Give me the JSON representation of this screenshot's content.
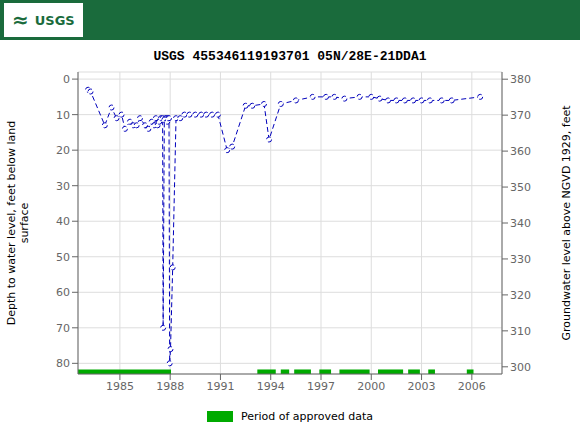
{
  "chart_data": {
    "type": "line",
    "title": "USGS 455346119193701 05N/28E-21DDA1",
    "annotations": [
      "≈",
      "USGS"
    ],
    "y_label": "Depth to water level, feet below land\n surface",
    "y2_label": "Groundwater level above NGVD 1929, feet",
    "xlim": [
      1982.5,
      2007.8
    ],
    "xticks": [
      1985,
      1988,
      1991,
      1994,
      1997,
      2000,
      2003,
      2006
    ],
    "ylim": [
      83,
      -2
    ],
    "yticks": [
      0,
      10,
      20,
      30,
      40,
      50,
      60,
      70,
      80
    ],
    "y2lim": [
      298,
      382
    ],
    "y2ticks": [
      300,
      310,
      320,
      330,
      340,
      350,
      360,
      370,
      380
    ],
    "grid": true,
    "legend": "bottom",
    "x": [
      1983.1,
      1983.25,
      1984.1,
      1984.5,
      1984.8,
      1985.1,
      1985.3,
      1985.6,
      1985.8,
      1986.0,
      1986.2,
      1986.5,
      1986.7,
      1986.9,
      1987.05,
      1987.15,
      1987.25,
      1987.35,
      1987.45,
      1987.55,
      1987.58,
      1987.65,
      1987.72,
      1987.78,
      1987.83,
      1987.88,
      1987.93,
      1987.97,
      1988.02,
      1988.15,
      1988.35,
      1988.6,
      1988.85,
      1989.15,
      1989.5,
      1989.85,
      1990.15,
      1990.5,
      1990.85,
      1991.4,
      1991.7,
      1992.5,
      1992.9,
      1993.6,
      1993.9,
      1994.6,
      1995.5,
      1996.5,
      1997.3,
      1997.8,
      1998.4,
      1999.3,
      2000.0,
      2000.5,
      2001.0,
      2001.5,
      2002.0,
      2002.5,
      2003.0,
      2003.5,
      2004.2,
      2004.8,
      2006.5
    ],
    "values": [
      3.0,
      3.5,
      13.0,
      8.0,
      11.0,
      10.0,
      14.0,
      12.0,
      13.0,
      13.0,
      11.0,
      13.0,
      14.0,
      12.0,
      13.0,
      11.0,
      13.0,
      12.0,
      11.0,
      11.0,
      70.0,
      11.5,
      11.0,
      11.0,
      12.0,
      11.0,
      11.0,
      80.0,
      76.0,
      53.0,
      11.0,
      11.0,
      10.0,
      10.0,
      10.0,
      10.0,
      10.0,
      10.0,
      10.0,
      20.0,
      19.0,
      7.5,
      7.5,
      7.0,
      17.0,
      7.0,
      6.0,
      5.0,
      5.0,
      5.0,
      5.5,
      5.0,
      5.0,
      5.5,
      6.0,
      6.0,
      6.0,
      6.0,
      6.0,
      6.0,
      6.0,
      6.0,
      5.0
    ],
    "color": "#0000BB",
    "marker": "o",
    "line_style": "--",
    "approved_periods": {
      "name": "Period of approved data",
      "color": "#00AA00",
      "ranges": [
        [
          1982.5,
          1988.05
        ],
        [
          1993.2,
          1994.3
        ],
        [
          1994.6,
          1995.1
        ],
        [
          1995.4,
          1996.4
        ],
        [
          1996.9,
          1997.6
        ],
        [
          1998.1,
          1999.9
        ],
        [
          2000.4,
          2001.9
        ],
        [
          2002.2,
          2002.9
        ],
        [
          2003.4,
          2003.8
        ],
        [
          2005.7,
          2006.1
        ]
      ]
    }
  }
}
